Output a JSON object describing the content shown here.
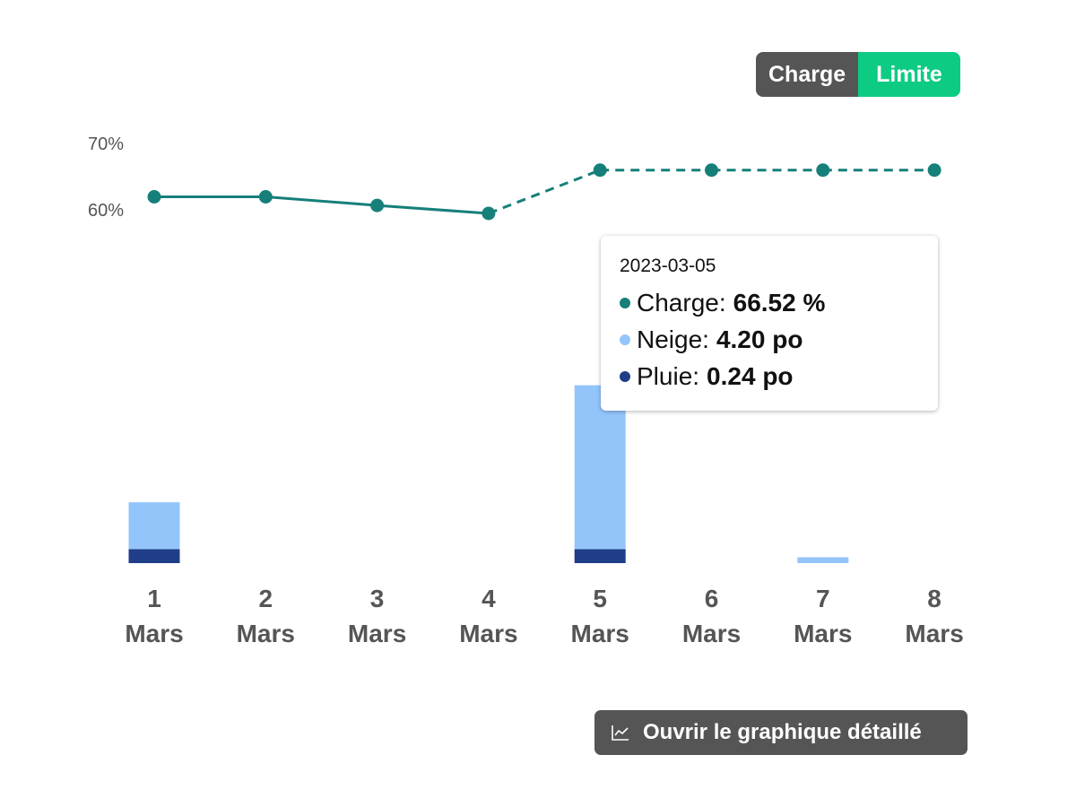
{
  "toggle": {
    "charge_label": "Charge",
    "limite_label": "Limite",
    "active": "Limite"
  },
  "colors": {
    "charge": "#167f7a",
    "neige": "#93c5fb",
    "pluie": "#1f3d88",
    "limite": "#0ecb83"
  },
  "chart_data": {
    "type": "bar+line",
    "categories": [
      [
        "1",
        "Mars"
      ],
      [
        "2",
        "Mars"
      ],
      [
        "3",
        "Mars"
      ],
      [
        "4",
        "Mars"
      ],
      [
        "5",
        "Mars"
      ],
      [
        "6",
        "Mars"
      ],
      [
        "7",
        "Mars"
      ],
      [
        "8",
        "Mars"
      ]
    ],
    "y_ticks": [
      "70%",
      "60%"
    ],
    "line": {
      "name": "Charge",
      "unit": "%",
      "values": [
        62.5,
        62.5,
        61.2,
        60.0,
        66.52,
        66.52,
        66.52,
        66.52
      ],
      "dashed_from_index": 3
    },
    "bars": [
      {
        "name": "Neige",
        "unit": "po",
        "values": [
          1.2,
          0,
          0,
          0,
          4.2,
          0,
          0.15,
          0
        ]
      },
      {
        "name": "Pluie",
        "unit": "po",
        "values": [
          0.24,
          0,
          0,
          0,
          0.24,
          0,
          0,
          0
        ]
      }
    ],
    "stacked": true
  },
  "tooltip": {
    "date": "2023-03-05",
    "rows": [
      {
        "label": "Charge",
        "sep": ":",
        "value": "66.52 %"
      },
      {
        "label": "Neige",
        "sep": ":",
        "value": "4.20 po"
      },
      {
        "label": "Pluie",
        "sep": ":",
        "value": "0.24 po"
      }
    ]
  },
  "open_button": {
    "label": "Ouvrir le graphique détaillé",
    "icon": "line-chart-icon"
  }
}
